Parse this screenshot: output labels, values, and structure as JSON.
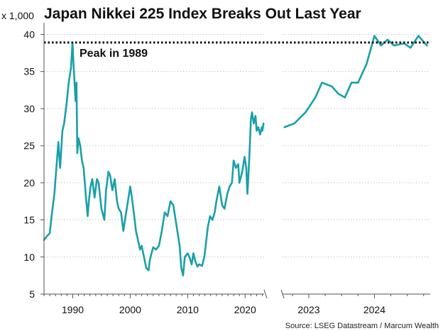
{
  "chart_data": {
    "type": "line",
    "title": "Japan Nikkei 225 Index Breaks Out Last Year",
    "unit_label": "x 1,000",
    "source": "Source: LSEG Datastream / Marcum Wealth",
    "ylim": [
      5,
      41
    ],
    "yticks": [
      5,
      10,
      15,
      20,
      25,
      30,
      35,
      40
    ],
    "grid": true,
    "series_color": "#1aa0a8",
    "reference_line": {
      "label": "Peak in 1989",
      "value": 38.9
    },
    "panels": [
      {
        "name": "long-term",
        "xlim": [
          1985,
          2023.3
        ],
        "xticks": [
          1990,
          2000,
          2010,
          2020
        ],
        "x": [
          1985.0,
          1985.5,
          1986.0,
          1986.4,
          1986.8,
          1987.3,
          1987.5,
          1987.8,
          1988.2,
          1988.5,
          1988.9,
          1989.3,
          1989.7,
          1989.95,
          1990.2,
          1990.5,
          1990.65,
          1990.8,
          1991.0,
          1991.3,
          1991.6,
          1991.9,
          1992.3,
          1992.6,
          1992.8,
          1993.1,
          1993.4,
          1993.8,
          1994.2,
          1994.5,
          1995.0,
          1995.5,
          1995.8,
          1996.2,
          1996.5,
          1996.9,
          1997.3,
          1997.7,
          1998.0,
          1998.4,
          1998.8,
          1999.2,
          1999.6,
          2000.0,
          2000.3,
          2000.7,
          2001.0,
          2001.3,
          2001.7,
          2002.0,
          2002.4,
          2002.8,
          2003.2,
          2003.4,
          2003.7,
          2004.0,
          2004.5,
          2005.0,
          2005.5,
          2006.0,
          2006.5,
          2007.0,
          2007.5,
          2007.9,
          2008.3,
          2008.6,
          2008.9,
          2009.2,
          2009.5,
          2010.0,
          2010.3,
          2010.7,
          2011.0,
          2011.3,
          2011.7,
          2012.0,
          2012.5,
          2012.9,
          2013.2,
          2013.5,
          2013.9,
          2014.3,
          2014.7,
          2015.0,
          2015.5,
          2016.0,
          2016.4,
          2016.9,
          2017.3,
          2017.7,
          2018.0,
          2018.4,
          2018.8,
          2019.0,
          2019.5,
          2019.9,
          2020.2,
          2020.4,
          2020.7,
          2021.0,
          2021.2,
          2021.5,
          2021.8,
          2022.0,
          2022.3,
          2022.6,
          2022.9,
          2023.0,
          2023.2
        ],
        "values": [
          12.3,
          12.8,
          13.2,
          16.0,
          18.5,
          23.5,
          25.5,
          22.0,
          27.0,
          28.0,
          30.5,
          33.5,
          35.5,
          38.9,
          35.0,
          31.0,
          33.5,
          24.0,
          26.0,
          25.0,
          23.0,
          22.0,
          18.0,
          15.5,
          17.5,
          19.5,
          20.5,
          18.0,
          20.5,
          20.0,
          16.5,
          15.0,
          19.0,
          21.5,
          21.0,
          19.0,
          20.5,
          17.5,
          16.5,
          16.0,
          13.5,
          15.5,
          17.5,
          19.5,
          18.0,
          15.5,
          13.5,
          12.5,
          11.0,
          11.5,
          10.0,
          8.5,
          8.2,
          9.5,
          10.5,
          11.3,
          11.0,
          11.5,
          13.5,
          16.0,
          15.5,
          17.5,
          17.0,
          15.0,
          13.0,
          11.5,
          8.5,
          7.5,
          10.0,
          10.5,
          10.0,
          9.0,
          10.5,
          9.5,
          8.7,
          9.0,
          8.8,
          10.0,
          12.0,
          14.0,
          15.5,
          15.0,
          16.0,
          17.5,
          19.5,
          17.0,
          16.5,
          18.5,
          19.5,
          20.0,
          23.0,
          22.0,
          22.5,
          20.0,
          21.5,
          23.5,
          22.0,
          18.5,
          23.0,
          28.5,
          29.5,
          28.0,
          29.0,
          27.0,
          27.5,
          26.5,
          27.5,
          27.0,
          28.0
        ]
      },
      {
        "name": "recent",
        "xlim": [
          2022.6,
          2024.85
        ],
        "xticks": [
          2023,
          2024
        ],
        "x": [
          2022.63,
          2022.78,
          2022.95,
          2023.1,
          2023.2,
          2023.35,
          2023.45,
          2023.55,
          2023.65,
          2023.75,
          2023.88,
          2024.0,
          2024.1,
          2024.2,
          2024.3,
          2024.45,
          2024.55,
          2024.67,
          2024.8
        ],
        "values": [
          27.5,
          28.0,
          29.5,
          31.5,
          33.5,
          33.0,
          32.0,
          31.5,
          33.5,
          33.5,
          36.0,
          39.8,
          38.5,
          39.3,
          38.5,
          38.8,
          38.2,
          39.8,
          38.5
        ]
      }
    ]
  }
}
